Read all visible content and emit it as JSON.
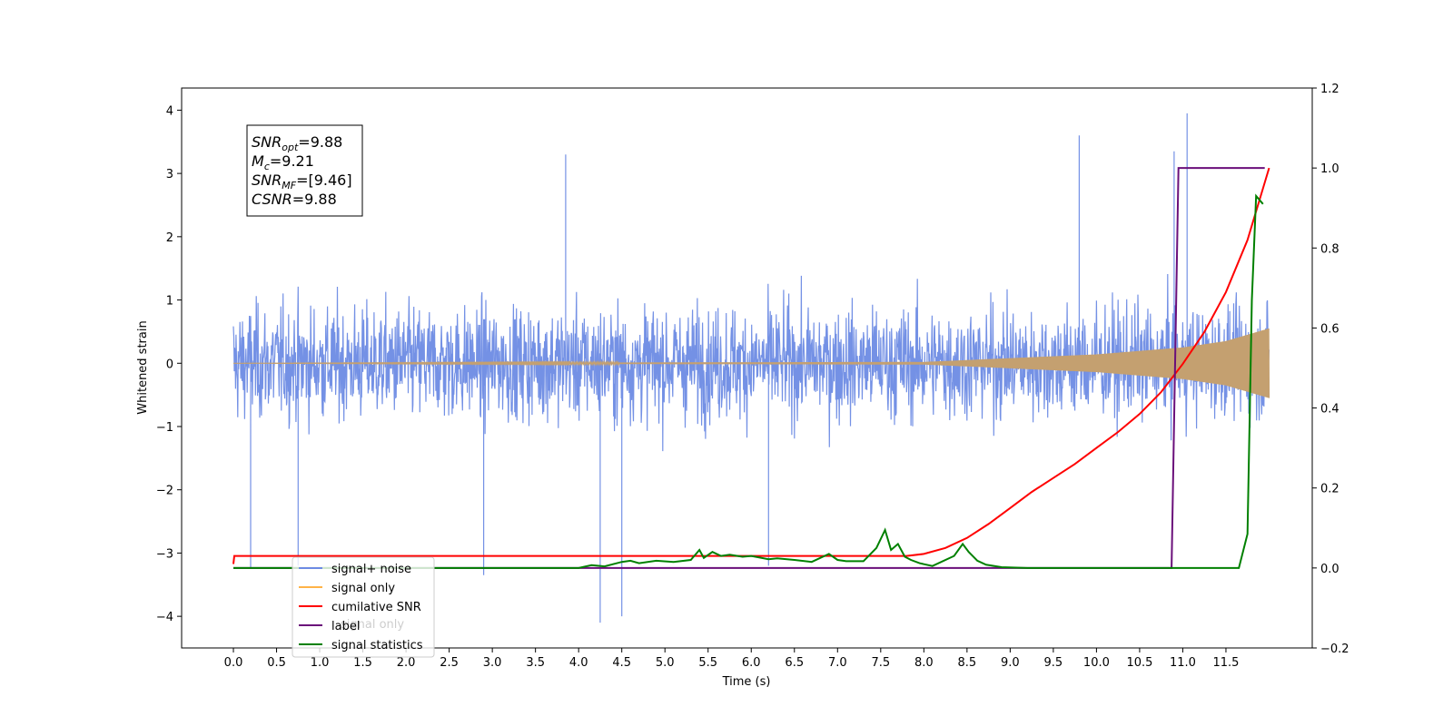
{
  "chart_data": {
    "type": "line",
    "title": "",
    "xlabel": "Time (s)",
    "ylabel": "Whitened strain",
    "xlim": [
      -0.6,
      12.5
    ],
    "ylim": [
      -4.5,
      4.35
    ],
    "y2lim": [
      -0.2,
      1.2
    ],
    "x_ticks": [
      0.0,
      0.5,
      1.0,
      1.5,
      2.0,
      2.5,
      3.0,
      3.5,
      4.0,
      4.5,
      5.0,
      5.5,
      6.0,
      6.5,
      7.0,
      7.5,
      8.0,
      8.5,
      9.0,
      9.5,
      10.0,
      10.5,
      11.0,
      11.5
    ],
    "x_tick_labels": [
      "0.0",
      "0.5",
      "1.0",
      "1.5",
      "2.0",
      "2.5",
      "3.0",
      "3.5",
      "4.0",
      "4.5",
      "5.0",
      "5.5",
      "6.0",
      "6.5",
      "7.0",
      "7.5",
      "8.0",
      "8.5",
      "9.0",
      "9.5",
      "10.0",
      "10.5",
      "11.0",
      "11.5"
    ],
    "y_ticks": [
      -4,
      -3,
      -2,
      -1,
      0,
      1,
      2,
      3,
      4
    ],
    "y_tick_labels": [
      "−4",
      "−3",
      "−2",
      "−1",
      "0",
      "1",
      "2",
      "3",
      "4"
    ],
    "y2_ticks": [
      -0.2,
      0.0,
      0.2,
      0.4,
      0.6,
      0.8,
      1.0,
      1.2
    ],
    "y2_tick_labels": [
      "−0.2",
      "0.0",
      "0.2",
      "0.4",
      "0.6",
      "0.8",
      "1.0",
      "1.2"
    ],
    "grid": false,
    "legend_position": "bottom-left",
    "legend": [
      {
        "label": "signal+ noise",
        "color": "#6d8be4"
      },
      {
        "label": "signal only",
        "color": "#ffb347"
      },
      {
        "label": "cumilative SNR",
        "color": "#ff0000"
      },
      {
        "label": "label",
        "color": "#6a0f7a"
      },
      {
        "label": "signal statistics",
        "color": "#008000"
      }
    ],
    "hidden_label": "signal only",
    "annotation": {
      "lines": [
        {
          "main": "SNR",
          "sub": "opt",
          "value": "=9.88"
        },
        {
          "main": "M",
          "sub": "c",
          "value": "=9.21"
        },
        {
          "main": "SNR",
          "sub": "MF",
          "value": "=[9.46]"
        },
        {
          "main": "CSNR",
          "sub": "",
          "value": "=9.88"
        }
      ]
    },
    "series": [
      {
        "name": "signal+ noise",
        "axis": "left",
        "color": "#6d8be4",
        "description": "noisy whitened strain, roughly uniform spread about 0 from t=0 to t=12",
        "x_range": [
          0.0,
          12.0
        ],
        "typical_min": -2.0,
        "typical_max": 2.0,
        "extreme_points": [
          {
            "x": 0.2,
            "y": -3.25
          },
          {
            "x": 0.75,
            "y": -3.2
          },
          {
            "x": 2.9,
            "y": -3.35
          },
          {
            "x": 4.25,
            "y": -4.1
          },
          {
            "x": 4.5,
            "y": -4.0
          },
          {
            "x": 6.2,
            "y": -3.2
          },
          {
            "x": 11.05,
            "y": 3.95
          },
          {
            "x": 10.9,
            "y": 3.35
          },
          {
            "x": 3.85,
            "y": 3.3
          },
          {
            "x": 9.8,
            "y": 3.6
          }
        ]
      },
      {
        "name": "signal only",
        "axis": "left",
        "color": "#c4a070",
        "description": "chirp whose envelope grows from ~0 near t=8 to ~0.55 at t=12",
        "envelope": {
          "x": [
            0.0,
            8.0,
            9.0,
            10.0,
            11.0,
            11.5,
            12.0
          ],
          "y": [
            0.0,
            0.02,
            0.08,
            0.14,
            0.25,
            0.35,
            0.55
          ]
        }
      },
      {
        "name": "cumilative SNR",
        "axis": "right",
        "x": [
          0.0,
          0.01,
          7.8,
          8.0,
          8.25,
          8.5,
          8.75,
          9.0,
          9.25,
          9.5,
          9.75,
          10.0,
          10.25,
          10.5,
          10.75,
          11.0,
          11.25,
          11.5,
          11.75,
          12.0
        ],
        "y": [
          0.01,
          0.03,
          0.03,
          0.035,
          0.05,
          0.075,
          0.11,
          0.15,
          0.19,
          0.225,
          0.26,
          0.3,
          0.34,
          0.385,
          0.44,
          0.51,
          0.59,
          0.69,
          0.82,
          1.0
        ],
        "color": "#ff0000"
      },
      {
        "name": "label",
        "axis": "right",
        "x": [
          0.0,
          10.87,
          10.95,
          11.95
        ],
        "y": [
          0.0,
          0.0,
          1.0,
          1.0
        ],
        "color": "#6a0f7a"
      },
      {
        "name": "signal statistics",
        "axis": "right",
        "x": [
          0.0,
          4.0,
          4.15,
          4.3,
          4.5,
          4.6,
          4.7,
          4.9,
          5.1,
          5.3,
          5.4,
          5.45,
          5.55,
          5.65,
          5.75,
          5.9,
          6.0,
          6.2,
          6.3,
          6.5,
          6.7,
          6.9,
          7.0,
          7.1,
          7.3,
          7.45,
          7.55,
          7.62,
          7.7,
          7.78,
          7.85,
          7.95,
          8.1,
          8.35,
          8.45,
          8.52,
          8.62,
          8.72,
          8.9,
          9.2,
          11.65,
          11.75,
          11.8,
          11.85,
          11.93
        ],
        "y": [
          0.0,
          0.0,
          0.007,
          0.004,
          0.015,
          0.018,
          0.012,
          0.018,
          0.015,
          0.02,
          0.045,
          0.025,
          0.04,
          0.03,
          0.033,
          0.028,
          0.03,
          0.022,
          0.024,
          0.02,
          0.015,
          0.035,
          0.02,
          0.017,
          0.017,
          0.05,
          0.095,
          0.045,
          0.06,
          0.028,
          0.02,
          0.012,
          0.005,
          0.03,
          0.06,
          0.04,
          0.018,
          0.008,
          0.002,
          0.0,
          0.0,
          0.085,
          0.67,
          0.93,
          0.91
        ],
        "color": "#008000"
      }
    ]
  }
}
